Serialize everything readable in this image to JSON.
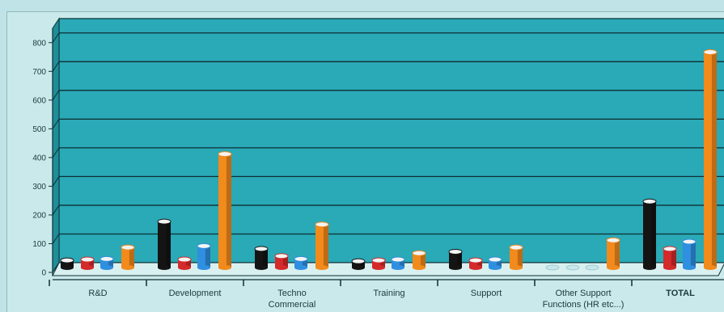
{
  "chart_data": {
    "type": "bar",
    "title": "",
    "xlabel": "",
    "ylabel": "",
    "ylim": [
      0,
      850
    ],
    "yticks": [
      0,
      100,
      200,
      300,
      400,
      500,
      600,
      700,
      800
    ],
    "grid": true,
    "categories": [
      {
        "lines": [
          "R&D"
        ],
        "bold": false
      },
      {
        "lines": [
          "Development"
        ],
        "bold": false
      },
      {
        "lines": [
          "Techno",
          "Commercial"
        ],
        "bold": false
      },
      {
        "lines": [
          "Training"
        ],
        "bold": false
      },
      {
        "lines": [
          "Support"
        ],
        "bold": false
      },
      {
        "lines": [
          "Other Support",
          "Functions (HR etc...)"
        ],
        "bold": false
      },
      {
        "lines": [
          "TOTAL"
        ],
        "bold": true
      }
    ],
    "series": [
      {
        "color": "#141414",
        "values": [
          25,
          160,
          65,
          22,
          55,
          0,
          230
        ]
      },
      {
        "color": "#d42a2a",
        "values": [
          28,
          28,
          40,
          25,
          25,
          0,
          65
        ]
      },
      {
        "color": "#2f8fe0",
        "values": [
          30,
          75,
          30,
          28,
          28,
          0,
          90
        ]
      },
      {
        "color": "#f28a1c",
        "values": [
          70,
          395,
          150,
          50,
          70,
          95,
          750
        ]
      }
    ]
  }
}
